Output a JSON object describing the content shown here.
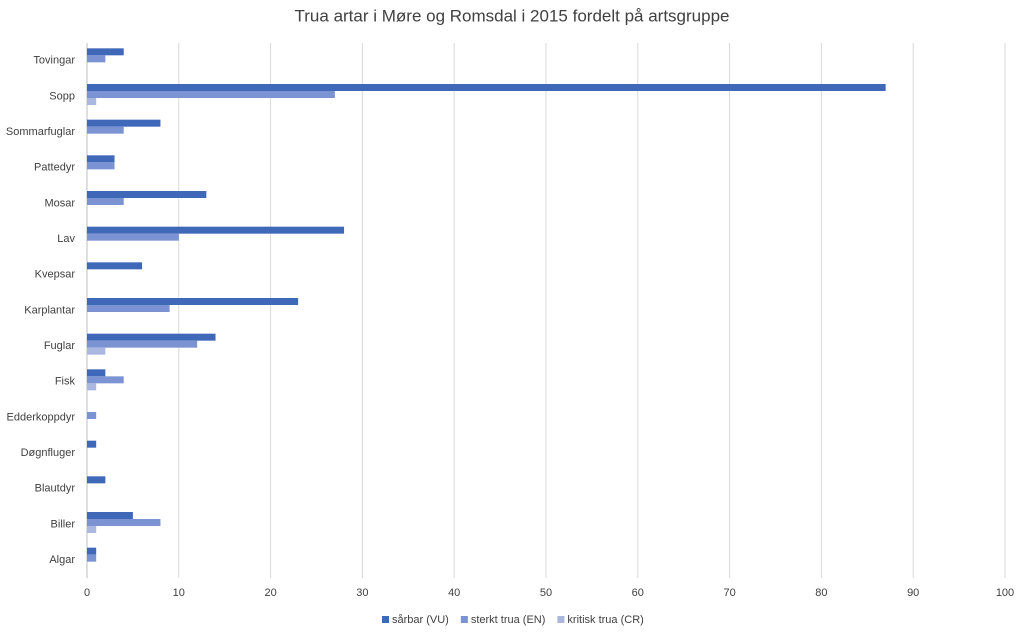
{
  "chart_data": {
    "type": "hbar",
    "title": "Trua artar i Møre og Romsdal i 2015 fordelt på artsgruppe",
    "categories": [
      "Tovingar",
      "Sopp",
      "Sommarfuglar",
      "Pattedyr",
      "Mosar",
      "Lav",
      "Kvepsar",
      "Karplantar",
      "Fuglar",
      "Fisk",
      "Edderkoppdyr",
      "Døgnfluger",
      "Blautdyr",
      "Biller",
      "Algar"
    ],
    "series": [
      {
        "name": "sårbar (VU)",
        "color": "#4068b8",
        "values": [
          4,
          87,
          8,
          3,
          13,
          28,
          6,
          23,
          14,
          2,
          0,
          1,
          2,
          5,
          1
        ]
      },
      {
        "name": "sterkt trua (EN)",
        "color": "#7b93d3",
        "values": [
          2,
          27,
          4,
          3,
          4,
          10,
          0,
          9,
          12,
          4,
          1,
          0,
          0,
          8,
          1
        ]
      },
      {
        "name": "kritisk trua (CR)",
        "color": "#aab8e0",
        "values": [
          0,
          1,
          0,
          0,
          0,
          0,
          0,
          0,
          2,
          1,
          0,
          0,
          0,
          1,
          0
        ]
      }
    ],
    "xlim": [
      0,
      100
    ],
    "xticks": [
      0,
      10,
      20,
      30,
      40,
      50,
      60,
      70,
      80,
      90,
      100
    ],
    "grid": true,
    "legend": "bottom"
  }
}
